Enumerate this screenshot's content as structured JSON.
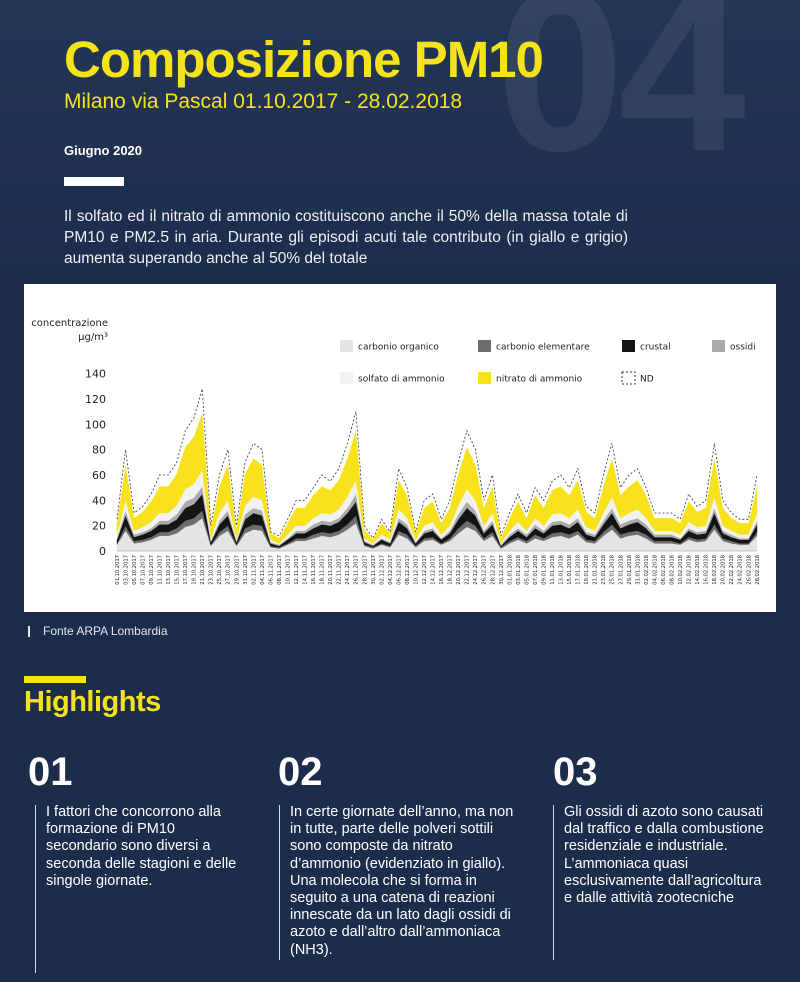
{
  "header": {
    "number": "04",
    "title": "Composizione PM10",
    "subtitle": "Milano via Pascal 01.10.2017 - 28.02.2018",
    "date": "Giugno 2020",
    "intro": "Il solfato ed il nitrato di ammonio costituiscono anche il 50% della massa totale di PM10 e PM2.5 in aria. Durante gli episodi acuti tale contributo (in giallo e  grigio) aumenta superando anche al 50% del totale"
  },
  "chart_data": {
    "type": "stacked_area",
    "ylabel": "concentrazione",
    "yunit": "µg/m³",
    "categories": [
      "01.10.2017",
      "03.10.2017",
      "05.10.2017",
      "07.10.2017",
      "09.10.2017",
      "11.10.2017",
      "13.10.2017",
      "15.10.2017",
      "17.10.2017",
      "19.10.2017",
      "21.10.2017",
      "23.10.2017",
      "25.10.2017",
      "27.10.2017",
      "29.10.2017",
      "31.10.2017",
      "02.11.2017",
      "04.11.2017",
      "06.11.2017",
      "08.11.2017",
      "10.11.2017",
      "12.11.2017",
      "14.11.2017",
      "16.11.2017",
      "18.11.2017",
      "20.11.2017",
      "22.11.2017",
      "24.11.2017",
      "26.11.2017",
      "28.11.2017",
      "30.11.2017",
      "02.12.2017",
      "04.12.2017",
      "06.12.2017",
      "08.12.2017",
      "10.12.2017",
      "12.12.2017",
      "14.12.2017",
      "16.12.2017",
      "18.12.2017",
      "20.12.2017",
      "22.12.2017",
      "24.12.2017",
      "26.12.2017",
      "28.12.2017",
      "30.12.2017",
      "01.01.2018",
      "03.01.2018",
      "05.01.2018",
      "07.01.2018",
      "09.01.2018",
      "11.01.2018",
      "13.01.2018",
      "15.01.2018",
      "17.01.2018",
      "19.01.2018",
      "21.01.2018",
      "23.01.2018",
      "25.01.2018",
      "27.01.2018",
      "29.01.2018",
      "31.01.2018",
      "02.02.2018",
      "04.02.2018",
      "06.02.2018",
      "08.02.2018",
      "10.02.2018",
      "12.02.2018",
      "14.02.2018",
      "16.02.2018",
      "18.02.2018",
      "20.02.2018",
      "22.02.2018",
      "24.02.2018",
      "26.02.2018",
      "28.02.2018"
    ],
    "series": [
      {
        "name": "carbonio organico",
        "color": "#e4e4e4",
        "values": [
          5,
          16,
          6,
          7,
          9,
          12,
          12,
          14,
          19,
          21,
          26,
          4,
          12,
          16,
          4,
          14,
          17,
          16,
          3,
          2,
          5,
          8,
          8,
          10,
          12,
          11,
          13,
          17,
          22,
          4,
          2,
          5,
          3,
          13,
          10,
          3,
          8,
          9,
          5,
          8,
          14,
          19,
          16,
          8,
          12,
          2,
          6,
          9,
          6,
          10,
          8,
          11,
          12,
          10,
          13,
          7,
          6,
          12,
          17,
          10,
          12,
          13,
          10,
          6,
          6,
          6,
          5,
          9,
          7,
          8,
          17,
          8,
          6,
          5,
          5,
          12
        ]
      },
      {
        "name": "carbonio elementare",
        "color": "#6e6e6e",
        "values": [
          1,
          4,
          2,
          2,
          2,
          3,
          3,
          4,
          5,
          5,
          6,
          1,
          3,
          4,
          1,
          4,
          4,
          4,
          1,
          1,
          1,
          2,
          2,
          3,
          3,
          3,
          3,
          4,
          6,
          1,
          1,
          1,
          1,
          3,
          3,
          1,
          2,
          2,
          1,
          2,
          4,
          5,
          4,
          2,
          3,
          1,
          2,
          2,
          2,
          3,
          2,
          3,
          3,
          3,
          3,
          2,
          2,
          3,
          4,
          3,
          3,
          3,
          3,
          2,
          2,
          2,
          1,
          2,
          2,
          2,
          4,
          2,
          2,
          1,
          1,
          3
        ]
      },
      {
        "name": "crustal",
        "color": "#141414",
        "values": [
          3,
          8,
          3,
          4,
          5,
          6,
          6,
          7,
          10,
          11,
          13,
          2,
          6,
          8,
          2,
          7,
          9,
          8,
          2,
          1,
          3,
          4,
          4,
          5,
          6,
          6,
          7,
          9,
          11,
          2,
          1,
          3,
          2,
          7,
          5,
          2,
          4,
          5,
          3,
          4,
          7,
          10,
          8,
          4,
          6,
          1,
          3,
          5,
          3,
          5,
          4,
          6,
          6,
          5,
          7,
          4,
          3,
          6,
          9,
          5,
          6,
          7,
          5,
          3,
          3,
          3,
          3,
          5,
          4,
          4,
          9,
          4,
          3,
          3,
          3,
          6
        ]
      },
      {
        "name": "ossidi",
        "color": "#ababab",
        "values": [
          1,
          4,
          2,
          2,
          2,
          3,
          3,
          4,
          5,
          5,
          6,
          1,
          3,
          4,
          1,
          4,
          4,
          4,
          1,
          1,
          1,
          2,
          2,
          3,
          3,
          3,
          3,
          4,
          6,
          1,
          1,
          1,
          1,
          3,
          3,
          1,
          2,
          2,
          1,
          2,
          4,
          5,
          4,
          2,
          3,
          1,
          2,
          2,
          2,
          3,
          2,
          3,
          3,
          3,
          3,
          2,
          2,
          3,
          4,
          3,
          3,
          3,
          3,
          2,
          2,
          2,
          1,
          2,
          2,
          2,
          4,
          2,
          2,
          1,
          1,
          3
        ]
      },
      {
        "name": "solfato di ammonio",
        "color": "#f2f2f2",
        "values": [
          3,
          8,
          3,
          4,
          5,
          6,
          6,
          7,
          10,
          11,
          13,
          2,
          6,
          8,
          2,
          7,
          9,
          8,
          2,
          1,
          3,
          4,
          4,
          5,
          6,
          6,
          7,
          9,
          11,
          2,
          1,
          3,
          2,
          7,
          5,
          2,
          4,
          5,
          3,
          4,
          7,
          10,
          8,
          4,
          6,
          1,
          3,
          5,
          3,
          5,
          4,
          6,
          6,
          5,
          7,
          4,
          3,
          6,
          9,
          5,
          6,
          7,
          5,
          3,
          3,
          3,
          3,
          5,
          4,
          4,
          9,
          4,
          3,
          3,
          3,
          6
        ]
      },
      {
        "name": "nitrato di ammonio",
        "color": "#f7e21b",
        "values": [
          9,
          28,
          10,
          12,
          16,
          21,
          21,
          25,
          33,
          37,
          45,
          7,
          21,
          28,
          7,
          25,
          30,
          28,
          5,
          4,
          9,
          14,
          14,
          18,
          21,
          19,
          23,
          30,
          39,
          7,
          3,
          9,
          5,
          23,
          18,
          5,
          14,
          16,
          9,
          14,
          25,
          33,
          28,
          14,
          21,
          4,
          10,
          16,
          10,
          18,
          14,
          19,
          21,
          18,
          23,
          12,
          10,
          21,
          30,
          18,
          21,
          23,
          18,
          10,
          10,
          10,
          9,
          16,
          12,
          14,
          30,
          14,
          10,
          9,
          9,
          21
        ]
      },
      {
        "name": "ND",
        "color": "#ffffff",
        "style": "dashed",
        "values": [
          3,
          12,
          4,
          4,
          6,
          9,
          9,
          9,
          13,
          15,
          19,
          3,
          9,
          12,
          3,
          9,
          12,
          12,
          1,
          2,
          3,
          6,
          6,
          6,
          9,
          7,
          9,
          12,
          15,
          3,
          1,
          3,
          1,
          9,
          6,
          1,
          6,
          6,
          3,
          6,
          9,
          13,
          12,
          6,
          9,
          2,
          4,
          6,
          4,
          6,
          6,
          7,
          9,
          6,
          9,
          4,
          4,
          9,
          12,
          6,
          9,
          9,
          6,
          4,
          4,
          4,
          3,
          6,
          4,
          6,
          12,
          6,
          4,
          3,
          3,
          9
        ]
      }
    ],
    "ylim": [
      0,
      150
    ],
    "yticks": [
      0,
      20,
      40,
      60,
      80,
      100,
      120,
      140
    ],
    "grid": false
  },
  "source": "Fonte ARPA Lombardia",
  "highlights": {
    "title": "Highlights",
    "items": [
      {
        "number": "01",
        "text": "I fattori che concorrono alla formazione di PM10 secondario sono diversi a seconda delle stagioni e delle singole giornate."
      },
      {
        "number": "02",
        "text": "In certe giornate dell’anno, ma non in tutte, parte delle polveri sottili sono composte da nitrato d’ammonio (evidenziato in giallo). Una molecola che si forma in seguito a una catena di reazioni innescate da un lato dagli ossidi di azoto e dall’altro dall’ammoniaca (NH3)."
      },
      {
        "number": "03",
        "text": "Gli ossidi di azoto sono causati dal traffico e dalla combustione residenziale e industriale. L’ammoniaca quasi esclusivamente dall’agricoltura e dalle attività zootecniche"
      }
    ]
  }
}
